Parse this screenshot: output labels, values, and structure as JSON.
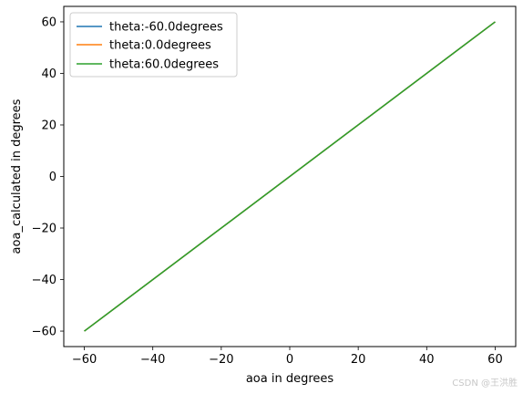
{
  "chart_data": {
    "type": "line",
    "xlabel": "aoa in degrees",
    "ylabel": "aoa_calculated in degrees",
    "xlim": [
      -66,
      66
    ],
    "ylim": [
      -66,
      66
    ],
    "xticks": [
      -60,
      -40,
      -20,
      0,
      20,
      40,
      60
    ],
    "yticks": [
      -60,
      -40,
      -20,
      0,
      20,
      40,
      60
    ],
    "grid": false,
    "legend_position": "top-left",
    "series": [
      {
        "name": "theta:-60.0degrees",
        "color": "#1f77b4",
        "x": [
          -60,
          60
        ],
        "y": [
          -60,
          60
        ]
      },
      {
        "name": "theta:0.0degrees",
        "color": "#ff7f0e",
        "x": [
          -60,
          60
        ],
        "y": [
          -60,
          60
        ]
      },
      {
        "name": "theta:60.0degrees",
        "color": "#2ca02c",
        "x": [
          -60,
          60
        ],
        "y": [
          -60,
          60
        ]
      }
    ]
  },
  "watermark": "CSDN @王洪胜"
}
